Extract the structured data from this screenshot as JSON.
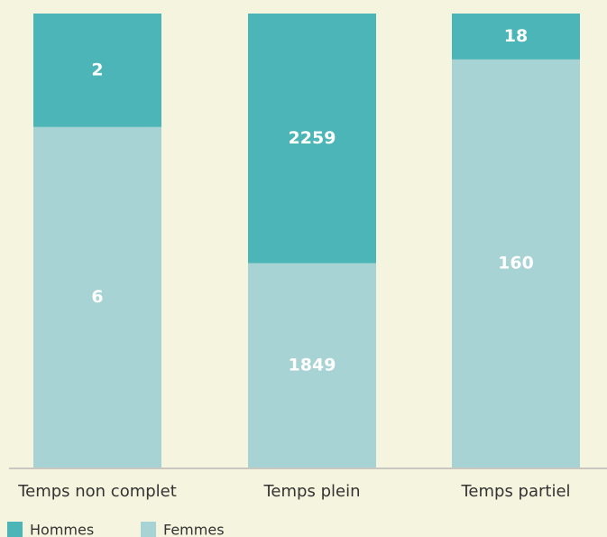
{
  "chart_data": {
    "type": "bar",
    "stacked": "percent",
    "categories": [
      "Temps non complet",
      "Temps plein",
      "Temps partiel"
    ],
    "series": [
      {
        "name": "Hommes",
        "color": "#4bb5b8",
        "values": [
          2,
          2259,
          18
        ]
      },
      {
        "name": "Femmes",
        "color": "#a7d3d5",
        "values": [
          6,
          1849,
          160
        ]
      }
    ]
  }
}
